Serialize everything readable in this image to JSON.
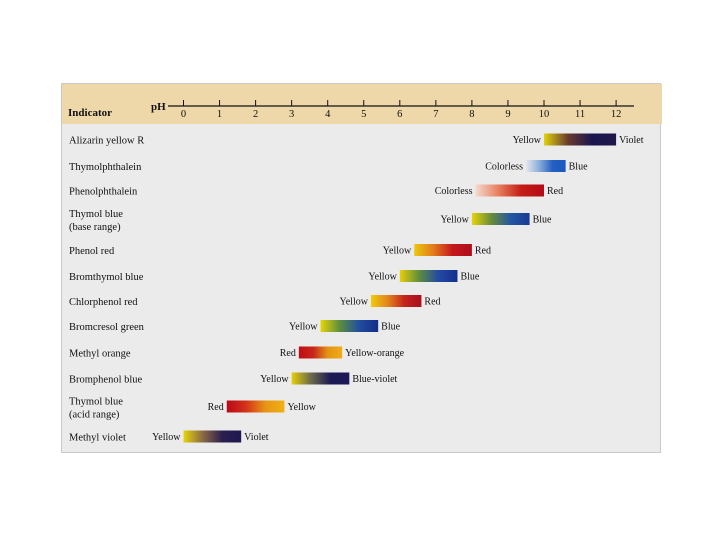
{
  "header": {
    "indicator_label": "Indicator",
    "ph_label": "pH"
  },
  "colors": {
    "panel_bg": "#ebebeb",
    "header_bg": "#eed8a9"
  },
  "chart_data": {
    "type": "range-bar",
    "x_ticks": [
      0,
      1,
      2,
      3,
      4,
      5,
      6,
      7,
      8,
      9,
      10,
      11,
      12
    ],
    "xlim": [
      -0.5,
      12.7
    ],
    "indicators": [
      {
        "name": [
          "Alizarin yellow R"
        ],
        "low": 10.0,
        "high": 12.0,
        "low_label": "Yellow",
        "high_label": "Violet",
        "colors": [
          "#e1d20b",
          "#6a3a2e",
          "#1a1550",
          "#1e1847"
        ]
      },
      {
        "name": [
          "Thymolphthalein"
        ],
        "low": 9.5,
        "high": 10.6,
        "low_label": "Colorless",
        "high_label": "Blue",
        "colors": [
          "#e4e6ee",
          "#8aaedb",
          "#2660c2",
          "#1b56c0"
        ]
      },
      {
        "name": [
          "Phenolphthalein"
        ],
        "low": 8.1,
        "high": 10.0,
        "low_label": "Colorless",
        "high_label": "Red",
        "colors": [
          "#f4dacd",
          "#e7805e",
          "#c51c16",
          "#b40b16"
        ]
      },
      {
        "name": [
          "Thymol blue",
          "(base range)"
        ],
        "low": 8.0,
        "high": 9.6,
        "low_label": "Yellow",
        "high_label": "Blue",
        "colors": [
          "#e6d40a",
          "#6a8c38",
          "#2257a2",
          "#1a3a95"
        ]
      },
      {
        "name": [
          "Phenol red"
        ],
        "low": 6.4,
        "high": 8.0,
        "low_label": "Yellow",
        "high_label": "Red",
        "colors": [
          "#e9ca0d",
          "#e27a1c",
          "#c5171d",
          "#ad0e1d"
        ]
      },
      {
        "name": [
          "Bromthymol blue"
        ],
        "low": 6.0,
        "high": 7.6,
        "low_label": "Yellow",
        "high_label": "Blue",
        "colors": [
          "#e7cf0b",
          "#5f8e3c",
          "#234aa2",
          "#12308c"
        ]
      },
      {
        "name": [
          "Chlorphenol red"
        ],
        "low": 5.2,
        "high": 6.6,
        "low_label": "Yellow",
        "high_label": "Red",
        "colors": [
          "#eecb0d",
          "#e3841c",
          "#c3231c",
          "#a90f1c"
        ]
      },
      {
        "name": [
          "Bromcresol green"
        ],
        "low": 3.8,
        "high": 5.4,
        "low_label": "Yellow",
        "high_label": "Blue",
        "colors": [
          "#e6d40a",
          "#5d8e3c",
          "#214da0",
          "#152d88"
        ]
      },
      {
        "name": [
          "Methyl orange"
        ],
        "low": 3.2,
        "high": 4.4,
        "low_label": "Red",
        "high_label": "Yellow-orange",
        "colors": [
          "#c20d13",
          "#c8261b",
          "#e29415",
          "#f0ac16"
        ]
      },
      {
        "name": [
          "Bromphenol blue"
        ],
        "low": 3.0,
        "high": 4.6,
        "low_label": "Yellow",
        "high_label": "Blue-violet",
        "colors": [
          "#e6cf0a",
          "#6b6a4a",
          "#1d1b54",
          "#1b1757"
        ]
      },
      {
        "name": [
          "Thymol blue",
          "(acid range)"
        ],
        "low": 1.2,
        "high": 2.8,
        "low_label": "Red",
        "high_label": "Yellow",
        "colors": [
          "#b9091a",
          "#d4321a",
          "#e79416",
          "#f0b214"
        ]
      },
      {
        "name": [
          "Methyl violet"
        ],
        "low": 0.0,
        "high": 1.6,
        "low_label": "Yellow",
        "high_label": "Violet",
        "colors": [
          "#e6d40a",
          "#8a6a45",
          "#2c1f4f",
          "#1c1850"
        ]
      }
    ]
  }
}
